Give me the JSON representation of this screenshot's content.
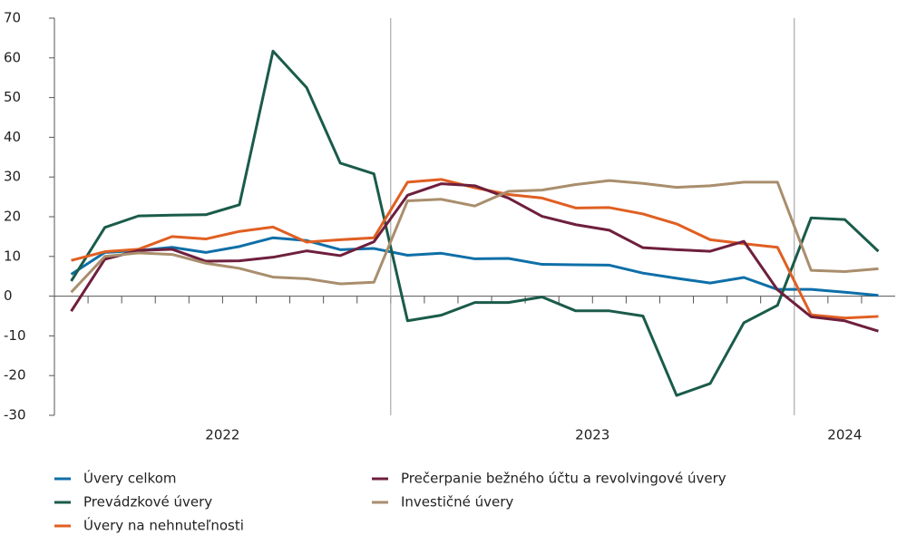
{
  "chart_data": {
    "type": "line",
    "categories": [
      null,
      null,
      null,
      null,
      null,
      null,
      null,
      null,
      null,
      null,
      null,
      null,
      null,
      null,
      null,
      null,
      null,
      null,
      null,
      null,
      null,
      null,
      null,
      null,
      null
    ],
    "x_groups": [
      {
        "label": "2022",
        "span": 10
      },
      {
        "label": "2023",
        "span": 12
      },
      {
        "label": "2024",
        "span": 3
      }
    ],
    "ylim": [
      -30,
      70
    ],
    "yticks": [
      -30,
      -20,
      -10,
      0,
      10,
      20,
      30,
      40,
      50,
      60,
      70
    ],
    "series": [
      {
        "name": "Úvery celkom",
        "color": "#0e6fa8",
        "values": [
          5.5,
          11,
          11.5,
          12.3,
          11,
          12.5,
          14.7,
          14,
          11.7,
          12,
          10.3,
          10.8,
          9.4,
          9.5,
          8,
          7.9,
          7.8,
          5.8,
          4.5,
          3.3,
          4.7,
          1.7,
          1.7,
          1,
          0.2
        ]
      },
      {
        "name": "Prevádzkové úvery",
        "color": "#1a5b4a",
        "values": [
          3.8,
          17.3,
          20.2,
          20.4,
          20.5,
          23,
          61.7,
          52.5,
          33.5,
          30.8,
          -6.2,
          -4.8,
          -1.6,
          -1.6,
          -0.2,
          -3.7,
          -3.7,
          -5,
          -25,
          -22,
          -6.7,
          -2.3,
          19.7,
          19.3,
          11.3
        ]
      },
      {
        "name": "Úvery na nehnuteľnosti",
        "color": "#e05f22",
        "values": [
          9,
          11.2,
          11.8,
          15,
          14.4,
          16.3,
          17.4,
          13.6,
          14.2,
          14.7,
          28.7,
          29.4,
          27.3,
          25.6,
          24.7,
          22.2,
          22.3,
          20.7,
          18.2,
          14.2,
          13.2,
          12.3,
          -4.7,
          -5.5,
          -5.1
        ]
      },
      {
        "name": "Prečerpanie bežného účtu a revolvingové úvery",
        "color": "#6e1f3d",
        "values": [
          -3.8,
          9.3,
          11.5,
          11.8,
          8.8,
          8.9,
          9.8,
          11.4,
          10.2,
          13.7,
          25.4,
          28.3,
          27.8,
          24.7,
          20.1,
          18,
          16.6,
          12.2,
          11.7,
          11.3,
          13.8,
          1.6,
          -5.2,
          -6.2,
          -8.8
        ]
      },
      {
        "name": "Investičné úvery",
        "color": "#a98e6d",
        "values": [
          1,
          10,
          10.9,
          10.5,
          8.3,
          7,
          4.8,
          4.4,
          3.1,
          3.5,
          24,
          24.4,
          22.7,
          26.4,
          26.7,
          28.1,
          29.1,
          28.4,
          27.4,
          27.8,
          28.7,
          28.7,
          6.5,
          6.2,
          6.9
        ]
      }
    ]
  }
}
